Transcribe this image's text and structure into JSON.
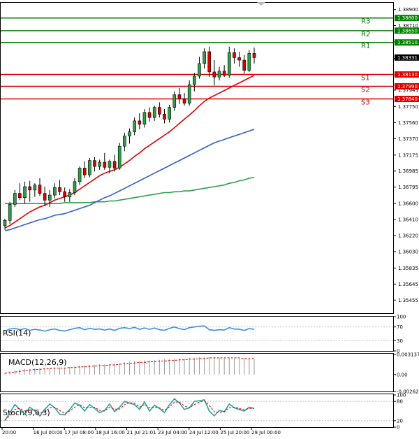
{
  "chart_data": {
    "type": "candlestick",
    "main": {
      "ylim": [
        1.353,
        1.3898
      ],
      "y_ticks": [
        "1.38900",
        "1.38710",
        "1.38515",
        "1.38320",
        "1.38125",
        "1.37945",
        "1.37750",
        "1.37560",
        "1.37370",
        "1.37175",
        "1.36985",
        "1.36795",
        "1.36600",
        "1.36410",
        "1.36220",
        "1.36030",
        "1.35835",
        "1.35645",
        "1.35455"
      ],
      "levels": [
        {
          "name": "R3",
          "value": 1.388,
          "label": "1.38800",
          "color": "#008000"
        },
        {
          "name": "R2",
          "value": 1.3865,
          "label": "1.38650",
          "color": "#008000"
        },
        {
          "name": "R1",
          "value": 1.3851,
          "label": "1.38510",
          "color": "#008000"
        },
        {
          "name": "S1",
          "value": 1.3813,
          "label": "1.38130",
          "color": "#dd0000"
        },
        {
          "name": "S2",
          "value": 1.3799,
          "label": "1.37990",
          "color": "#dd0000"
        },
        {
          "name": "S3",
          "value": 1.3784,
          "label": "1.37840",
          "color": "#dd0000"
        }
      ],
      "current_price": "1.38331",
      "candles": [
        [
          1.3634,
          1.3642,
          1.3629,
          1.364
        ],
        [
          1.364,
          1.3662,
          1.3636,
          1.3659
        ],
        [
          1.3659,
          1.3676,
          1.3656,
          1.3672
        ],
        [
          1.3672,
          1.3684,
          1.3664,
          1.3667
        ],
        [
          1.3667,
          1.3686,
          1.366,
          1.368
        ],
        [
          1.368,
          1.3687,
          1.3662,
          1.3676
        ],
        [
          1.3676,
          1.3684,
          1.3668,
          1.3682
        ],
        [
          1.3682,
          1.369,
          1.3669,
          1.3672
        ],
        [
          1.3672,
          1.368,
          1.3657,
          1.3664
        ],
        [
          1.3664,
          1.3676,
          1.3656,
          1.367
        ],
        [
          1.367,
          1.3684,
          1.3666,
          1.3679
        ],
        [
          1.3679,
          1.3688,
          1.367,
          1.3674
        ],
        [
          1.3674,
          1.3679,
          1.3662,
          1.3668
        ],
        [
          1.3668,
          1.3677,
          1.3662,
          1.3673
        ],
        [
          1.3673,
          1.369,
          1.367,
          1.3686
        ],
        [
          1.3686,
          1.3704,
          1.3682,
          1.3702
        ],
        [
          1.3702,
          1.371,
          1.369,
          1.3694
        ],
        [
          1.3694,
          1.3714,
          1.3691,
          1.3711
        ],
        [
          1.3711,
          1.3715,
          1.3698,
          1.3704
        ],
        [
          1.3704,
          1.3712,
          1.37,
          1.3709
        ],
        [
          1.3709,
          1.372,
          1.37,
          1.3703
        ],
        [
          1.3703,
          1.3712,
          1.3696,
          1.371
        ],
        [
          1.371,
          1.3718,
          1.3698,
          1.3702
        ],
        [
          1.3702,
          1.3732,
          1.37,
          1.3728
        ],
        [
          1.3728,
          1.3744,
          1.3722,
          1.374
        ],
        [
          1.374,
          1.3749,
          1.3731,
          1.3745
        ],
        [
          1.3745,
          1.3762,
          1.3741,
          1.3758
        ],
        [
          1.3758,
          1.3767,
          1.3748,
          1.3754
        ],
        [
          1.3754,
          1.3772,
          1.375,
          1.3768
        ],
        [
          1.3768,
          1.3774,
          1.3757,
          1.3762
        ],
        [
          1.3762,
          1.3776,
          1.3758,
          1.3774
        ],
        [
          1.3774,
          1.378,
          1.3762,
          1.3766
        ],
        [
          1.3766,
          1.3772,
          1.3755,
          1.376
        ],
        [
          1.376,
          1.3777,
          1.3756,
          1.3774
        ],
        [
          1.3774,
          1.3793,
          1.377,
          1.3789
        ],
        [
          1.3789,
          1.3797,
          1.3778,
          1.3784
        ],
        [
          1.3784,
          1.3791,
          1.3776,
          1.3779
        ],
        [
          1.3779,
          1.3806,
          1.3776,
          1.3801
        ],
        [
          1.3801,
          1.3815,
          1.3793,
          1.3811
        ],
        [
          1.3811,
          1.3834,
          1.3808,
          1.3826
        ],
        [
          1.3826,
          1.3844,
          1.382,
          1.384
        ],
        [
          1.384,
          1.3846,
          1.381,
          1.3816
        ],
        [
          1.3816,
          1.383,
          1.38,
          1.381
        ],
        [
          1.381,
          1.3822,
          1.3806,
          1.3817
        ],
        [
          1.3817,
          1.3824,
          1.381,
          1.3812
        ],
        [
          1.3812,
          1.3846,
          1.3809,
          1.3839
        ],
        [
          1.3839,
          1.3844,
          1.3826,
          1.3833
        ],
        [
          1.3833,
          1.384,
          1.3822,
          1.383
        ],
        [
          1.383,
          1.3836,
          1.3814,
          1.3818
        ],
        [
          1.3818,
          1.3842,
          1.3816,
          1.3838
        ],
        [
          1.3838,
          1.3845,
          1.3826,
          1.3833
        ]
      ],
      "ma_red": [
        1.3631,
        1.3634,
        1.3638,
        1.3642,
        1.3646,
        1.365,
        1.3653,
        1.3656,
        1.3658,
        1.3661,
        1.3664,
        1.3666,
        1.3668,
        1.367,
        1.3673,
        1.3677,
        1.3681,
        1.3685,
        1.3689,
        1.3693,
        1.3696,
        1.3698,
        1.37,
        1.3703,
        1.3707,
        1.3711,
        1.3716,
        1.372,
        1.3725,
        1.3729,
        1.3733,
        1.3737,
        1.3741,
        1.3745,
        1.375,
        1.3755,
        1.376,
        1.3765,
        1.377,
        1.3776,
        1.3781,
        1.3785,
        1.3788,
        1.3791,
        1.3794,
        1.3797,
        1.38,
        1.3803,
        1.3806,
        1.3809,
        1.3812
      ],
      "ma_blue": [
        1.3628,
        1.3629,
        1.3631,
        1.3633,
        1.3635,
        1.3637,
        1.3639,
        1.3641,
        1.3642,
        1.3644,
        1.3646,
        1.3647,
        1.3648,
        1.365,
        1.3652,
        1.3654,
        1.3656,
        1.3658,
        1.3661,
        1.3664,
        1.3667,
        1.3669,
        1.3672,
        1.3675,
        1.3678,
        1.3681,
        1.3684,
        1.3687,
        1.369,
        1.3693,
        1.3696,
        1.3699,
        1.3702,
        1.3705,
        1.3708,
        1.3711,
        1.3714,
        1.3717,
        1.372,
        1.3723,
        1.3726,
        1.3729,
        1.3732,
        1.3734,
        1.3736,
        1.3738,
        1.374,
        1.3742,
        1.3744,
        1.3746,
        1.3748
      ],
      "ma_green": [
        1.366,
        1.366,
        1.366,
        1.366,
        1.366,
        1.366,
        1.366,
        1.366,
        1.366,
        1.366,
        1.366,
        1.366,
        1.3661,
        1.3661,
        1.3661,
        1.3661,
        1.3661,
        1.3661,
        1.3662,
        1.3662,
        1.3662,
        1.3663,
        1.3663,
        1.3664,
        1.3665,
        1.3666,
        1.3667,
        1.3668,
        1.3669,
        1.367,
        1.3671,
        1.3672,
        1.3673,
        1.3673,
        1.3674,
        1.3674,
        1.3675,
        1.3675,
        1.3676,
        1.3677,
        1.3678,
        1.3679,
        1.368,
        1.3681,
        1.3682,
        1.3684,
        1.3685,
        1.3687,
        1.3688,
        1.369,
        1.3691
      ]
    },
    "rsi": {
      "title": "RSI(14)",
      "ticks": [
        "100",
        "70",
        "30",
        "0"
      ],
      "values": [
        58,
        64,
        66,
        62,
        65,
        60,
        63,
        61,
        58,
        62,
        64,
        60,
        58,
        62,
        66,
        68,
        62,
        66,
        63,
        64,
        61,
        64,
        60,
        66,
        68,
        65,
        69,
        63,
        67,
        63,
        67,
        62,
        60,
        66,
        70,
        65,
        62,
        68,
        70,
        72,
        73,
        62,
        60,
        62,
        61,
        68,
        64,
        63,
        60,
        65,
        63
      ]
    },
    "macd": {
      "title": "MACD(12,26,9)",
      "ticks": [
        "0.003137",
        "0.00",
        "-0.002629"
      ],
      "ylim": [
        -0.002629,
        0.003137
      ],
      "histogram": [
        0.0003,
        0.0005,
        0.0007,
        0.0008,
        0.0009,
        0.0009,
        0.001,
        0.001,
        0.001,
        0.001,
        0.0011,
        0.0011,
        0.0011,
        0.0012,
        0.0013,
        0.0014,
        0.0014,
        0.0015,
        0.0015,
        0.0016,
        0.0016,
        0.0016,
        0.0017,
        0.0018,
        0.0019,
        0.002,
        0.0021,
        0.0021,
        0.0022,
        0.0022,
        0.0023,
        0.0023,
        0.0024,
        0.0024,
        0.0025,
        0.0025,
        0.0025,
        0.0026,
        0.0026,
        0.0027,
        0.0027,
        0.0027,
        0.0027,
        0.0026,
        0.0026,
        0.0026,
        0.0026,
        0.0025,
        0.0025,
        0.0024,
        0.0024
      ],
      "signal": [
        0.0002,
        0.0003,
        0.0004,
        0.0005,
        0.0006,
        0.0007,
        0.0008,
        0.0008,
        0.0009,
        0.0009,
        0.001,
        0.001,
        0.001,
        0.0011,
        0.0011,
        0.0012,
        0.0012,
        0.0013,
        0.0013,
        0.0014,
        0.0014,
        0.0015,
        0.0015,
        0.0016,
        0.0017,
        0.0017,
        0.0018,
        0.0019,
        0.0019,
        0.002,
        0.002,
        0.0021,
        0.0021,
        0.0022,
        0.0022,
        0.0023,
        0.0023,
        0.0024,
        0.0024,
        0.0025,
        0.0025,
        0.0026,
        0.0026,
        0.0026,
        0.0026,
        0.0026,
        0.0026,
        0.0026,
        0.0025,
        0.0025,
        0.0025
      ]
    },
    "stoch": {
      "title": "Stoch(9,6,3)",
      "ticks": [
        "100",
        "80",
        "20",
        "0"
      ],
      "k": [
        20,
        45,
        70,
        55,
        40,
        62,
        50,
        35,
        55,
        72,
        60,
        40,
        38,
        55,
        75,
        68,
        50,
        70,
        58,
        45,
        52,
        72,
        48,
        62,
        80,
        75,
        70,
        55,
        78,
        50,
        68,
        58,
        45,
        70,
        88,
        75,
        55,
        60,
        80,
        82,
        85,
        50,
        35,
        52,
        48,
        72,
        60,
        55,
        50,
        62,
        58
      ],
      "d": [
        22,
        35,
        55,
        58,
        50,
        52,
        54,
        45,
        48,
        60,
        62,
        52,
        42,
        50,
        62,
        70,
        60,
        62,
        62,
        52,
        50,
        62,
        56,
        56,
        70,
        76,
        74,
        62,
        70,
        60,
        62,
        60,
        52,
        62,
        78,
        78,
        66,
        60,
        70,
        78,
        82,
        68,
        48,
        46,
        48,
        60,
        62,
        58,
        54,
        58,
        58
      ]
    },
    "x_labels": [
      "20:00",
      "16 Jul 00:00",
      "17 Jul 08:00",
      "18 Jul 16:00",
      "21 Jul 21:01",
      "23 Jul 04:00",
      "24 Jul 12:00",
      "25 Jul 20:00",
      "29 Jul 00:00"
    ]
  }
}
